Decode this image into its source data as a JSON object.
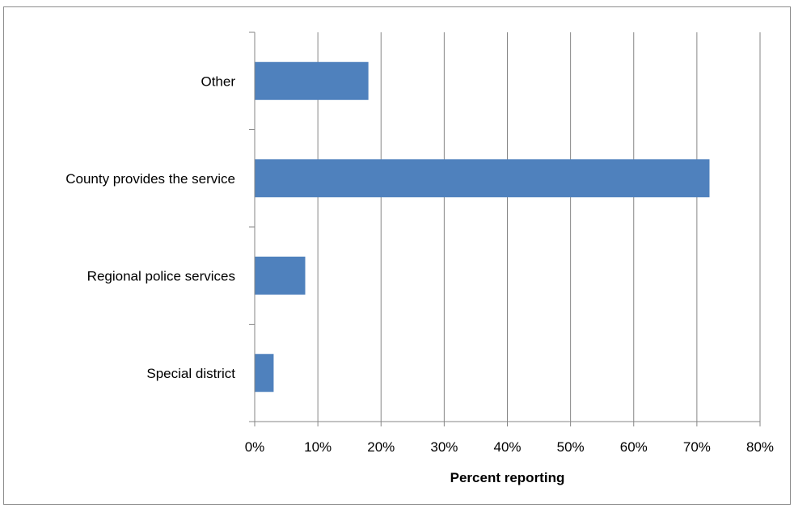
{
  "chart_data": {
    "type": "bar",
    "orientation": "horizontal",
    "categories": [
      "Other",
      "County provides the service",
      "Regional police services",
      "Special district"
    ],
    "values": [
      18,
      72,
      8,
      3
    ],
    "xlabel": "Percent reporting",
    "ylabel": "",
    "xlim": [
      0,
      80
    ],
    "x_ticks": [
      "0%",
      "10%",
      "20%",
      "30%",
      "40%",
      "50%",
      "60%",
      "70%",
      "80%"
    ],
    "grid": "vertical",
    "legend": "none",
    "bar_color": "#4f81bd"
  }
}
